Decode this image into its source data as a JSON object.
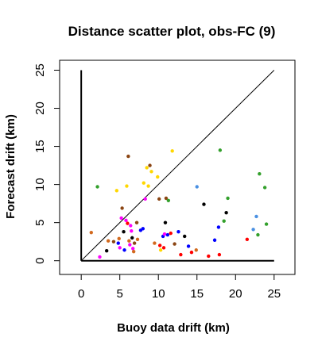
{
  "chart_data": {
    "type": "scatter",
    "title": "Distance scatter plot, obs-FC (9)",
    "xlabel": "Buoy data drift (km)",
    "ylabel": "Forecast drift (km)",
    "xlim": [
      -2.8,
      27.7
    ],
    "ylim": [
      -1.8,
      26.3
    ],
    "xticks": [
      0,
      5,
      10,
      15,
      20,
      25
    ],
    "yticks": [
      0,
      5,
      10,
      15,
      20,
      25
    ],
    "grid": false,
    "reference_lines": [
      {
        "kind": "diagonal",
        "x": [
          0,
          25
        ],
        "y": [
          0,
          25
        ],
        "color": "#000000"
      },
      {
        "kind": "vertical",
        "x": [
          0,
          0
        ],
        "y": [
          0,
          25
        ],
        "color": "#000000"
      },
      {
        "kind": "horizontal",
        "x": [
          0,
          25
        ],
        "y": [
          0,
          0
        ],
        "color": "#000000"
      }
    ],
    "points": [
      {
        "x": 1.3,
        "y": 3.7,
        "color": "#D2691E"
      },
      {
        "x": 2.1,
        "y": 9.7,
        "color": "#33A02C"
      },
      {
        "x": 2.4,
        "y": 0.5,
        "color": "#FF00FF"
      },
      {
        "x": 3.3,
        "y": 1.3,
        "color": "#000000"
      },
      {
        "x": 3.5,
        "y": 2.6,
        "color": "#D2691E"
      },
      {
        "x": 4.2,
        "y": 2.5,
        "color": "#8B4513"
      },
      {
        "x": 4.6,
        "y": 9.2,
        "color": "#FFD700"
      },
      {
        "x": 4.8,
        "y": 2.3,
        "color": "#0000FF"
      },
      {
        "x": 5.0,
        "y": 1.7,
        "color": "#FF00FF"
      },
      {
        "x": 4.9,
        "y": 2.9,
        "color": "#D2691E"
      },
      {
        "x": 5.2,
        "y": 5.6,
        "color": "#FF00FF"
      },
      {
        "x": 5.3,
        "y": 6.9,
        "color": "#8B4513"
      },
      {
        "x": 5.5,
        "y": 3.8,
        "color": "#000000"
      },
      {
        "x": 5.6,
        "y": 1.4,
        "color": "#0000FF"
      },
      {
        "x": 5.8,
        "y": 5.3,
        "color": "#FF00FF"
      },
      {
        "x": 6.0,
        "y": 4.9,
        "color": "#FF0000"
      },
      {
        "x": 5.9,
        "y": 9.8,
        "color": "#FFD700"
      },
      {
        "x": 6.1,
        "y": 13.7,
        "color": "#8B4513"
      },
      {
        "x": 6.2,
        "y": 2.6,
        "color": "#D2691E"
      },
      {
        "x": 6.3,
        "y": 2.1,
        "color": "#FF00FF"
      },
      {
        "x": 6.4,
        "y": 4.6,
        "color": "#FF00FF"
      },
      {
        "x": 6.5,
        "y": 3.9,
        "color": "#FF00FF"
      },
      {
        "x": 6.6,
        "y": 3.0,
        "color": "#000000"
      },
      {
        "x": 6.7,
        "y": 1.6,
        "color": "#FF00FF"
      },
      {
        "x": 6.9,
        "y": 2.3,
        "color": "#8B4513"
      },
      {
        "x": 6.8,
        "y": 1.2,
        "color": "#D2691E"
      },
      {
        "x": 7.2,
        "y": 5.0,
        "color": "#8B4513"
      },
      {
        "x": 7.3,
        "y": 2.8,
        "color": "#D2691E"
      },
      {
        "x": 7.7,
        "y": 4.0,
        "color": "#0000FF"
      },
      {
        "x": 8.0,
        "y": 4.2,
        "color": "#0000FF"
      },
      {
        "x": 8.1,
        "y": 10.2,
        "color": "#FFD700"
      },
      {
        "x": 8.3,
        "y": 8.1,
        "color": "#FF00FF"
      },
      {
        "x": 8.5,
        "y": 12.2,
        "color": "#FFD700"
      },
      {
        "x": 8.7,
        "y": 9.8,
        "color": "#FFD700"
      },
      {
        "x": 8.9,
        "y": 12.5,
        "color": "#8B4513"
      },
      {
        "x": 9.1,
        "y": 11.7,
        "color": "#FFD700"
      },
      {
        "x": 9.5,
        "y": 2.3,
        "color": "#D2691E"
      },
      {
        "x": 9.9,
        "y": 11.0,
        "color": "#FFD700"
      },
      {
        "x": 10.1,
        "y": 8.1,
        "color": "#8B4513"
      },
      {
        "x": 10.2,
        "y": 2.0,
        "color": "#FF0000"
      },
      {
        "x": 10.3,
        "y": 1.4,
        "color": "#FFD700"
      },
      {
        "x": 10.6,
        "y": 3.2,
        "color": "#0000FF"
      },
      {
        "x": 10.7,
        "y": 1.7,
        "color": "#FF0000"
      },
      {
        "x": 10.8,
        "y": 3.5,
        "color": "#FF00FF"
      },
      {
        "x": 10.9,
        "y": 5.0,
        "color": "#000000"
      },
      {
        "x": 11.0,
        "y": 8.2,
        "color": "#8B4513"
      },
      {
        "x": 11.2,
        "y": 3.4,
        "color": "#0000FF"
      },
      {
        "x": 11.3,
        "y": 7.9,
        "color": "#33A02C"
      },
      {
        "x": 11.6,
        "y": 3.6,
        "color": "#FF0000"
      },
      {
        "x": 11.8,
        "y": 14.4,
        "color": "#FFD700"
      },
      {
        "x": 12.1,
        "y": 2.2,
        "color": "#8B4513"
      },
      {
        "x": 12.6,
        "y": 3.8,
        "color": "#0000FF"
      },
      {
        "x": 12.9,
        "y": 0.8,
        "color": "#FF0000"
      },
      {
        "x": 13.4,
        "y": 3.2,
        "color": "#000000"
      },
      {
        "x": 13.9,
        "y": 1.9,
        "color": "#0000FF"
      },
      {
        "x": 14.3,
        "y": 1.1,
        "color": "#FF0000"
      },
      {
        "x": 14.9,
        "y": 1.4,
        "color": "#D2691E"
      },
      {
        "x": 15.0,
        "y": 9.7,
        "color": "#4A90E2"
      },
      {
        "x": 15.9,
        "y": 7.4,
        "color": "#000000"
      },
      {
        "x": 16.5,
        "y": 0.6,
        "color": "#FF0000"
      },
      {
        "x": 17.3,
        "y": 2.7,
        "color": "#0000FF"
      },
      {
        "x": 17.8,
        "y": 4.4,
        "color": "#0000FF"
      },
      {
        "x": 17.9,
        "y": 0.8,
        "color": "#FF0000"
      },
      {
        "x": 18.0,
        "y": 14.5,
        "color": "#33A02C"
      },
      {
        "x": 18.5,
        "y": 5.2,
        "color": "#33A02C"
      },
      {
        "x": 18.8,
        "y": 6.3,
        "color": "#000000"
      },
      {
        "x": 19.0,
        "y": 8.2,
        "color": "#33A02C"
      },
      {
        "x": 21.5,
        "y": 2.8,
        "color": "#FF0000"
      },
      {
        "x": 22.3,
        "y": 4.1,
        "color": "#4A90E2"
      },
      {
        "x": 22.7,
        "y": 5.8,
        "color": "#4A90E2"
      },
      {
        "x": 22.9,
        "y": 3.4,
        "color": "#33A02C"
      },
      {
        "x": 23.1,
        "y": 11.4,
        "color": "#33A02C"
      },
      {
        "x": 23.8,
        "y": 9.6,
        "color": "#33A02C"
      },
      {
        "x": 24.0,
        "y": 4.8,
        "color": "#33A02C"
      }
    ]
  }
}
